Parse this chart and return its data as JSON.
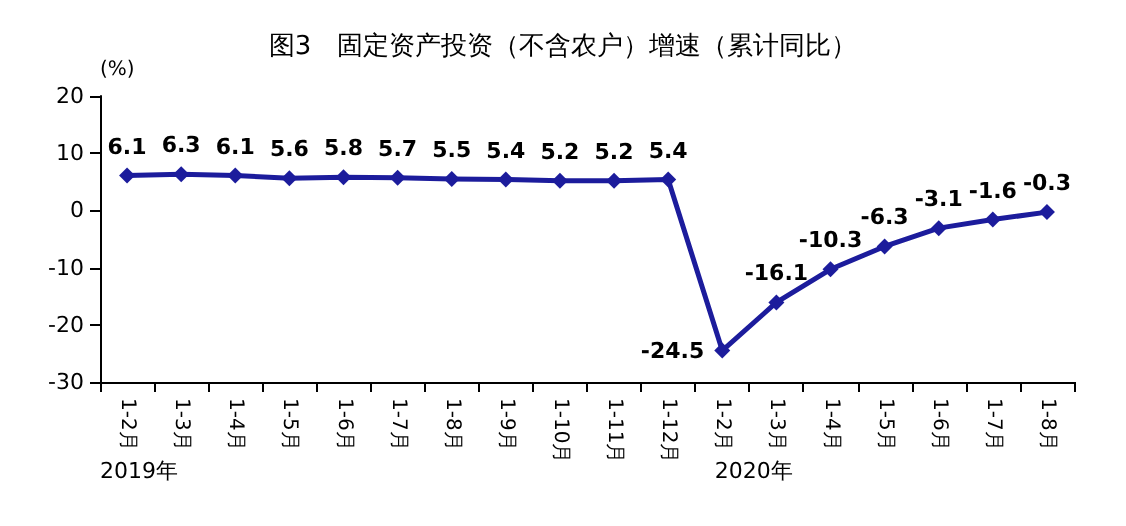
{
  "chart_data": {
    "type": "line",
    "title": "图3　固定资产投资（不含农户）增速（累计同比）",
    "ylabel": "(%)",
    "categories": [
      "1-2月",
      "1-3月",
      "1-4月",
      "1-5月",
      "1-6月",
      "1-7月",
      "1-8月",
      "1-9月",
      "1-10月",
      "1-11月",
      "1-12月",
      "1-2月",
      "1-3月",
      "1-4月",
      "1-5月",
      "1-6月",
      "1-7月",
      "1-8月"
    ],
    "series": [
      {
        "color": "#1c1c9c",
        "values": [
          6.1,
          6.3,
          6.1,
          5.6,
          5.8,
          5.7,
          5.5,
          5.4,
          5.2,
          5.2,
          5.4,
          -24.5,
          -16.1,
          -10.3,
          -6.3,
          -3.1,
          -1.6,
          -0.3
        ]
      }
    ],
    "ylim": [
      -30,
      20
    ],
    "yticks": [
      -30,
      -20,
      -10,
      0,
      10,
      20
    ],
    "grid": false,
    "marker": "diamond",
    "line_style": "solid",
    "data_labels": true,
    "annotations": [
      "2019年",
      "2020年"
    ]
  }
}
